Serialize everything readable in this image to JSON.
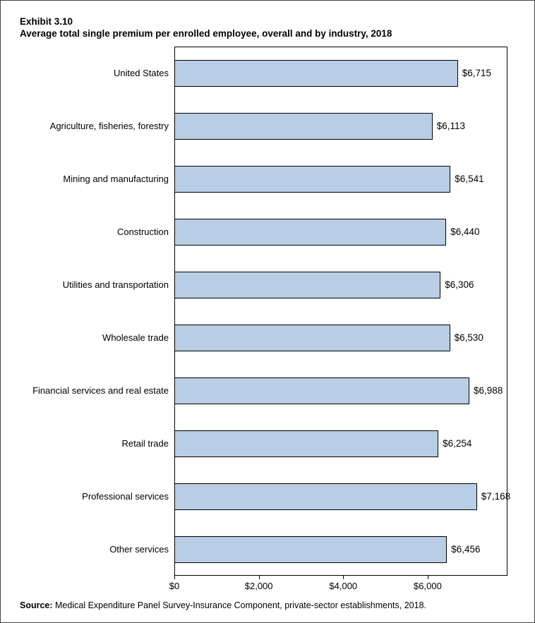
{
  "title": {
    "exhibit": "Exhibit 3.10",
    "text": "Average total single premium per enrolled employee, overall and by industry, 2018"
  },
  "chart_data": {
    "type": "bar",
    "orientation": "horizontal",
    "title": "Average total single premium per enrolled employee, overall and by industry, 2018",
    "categories": [
      "United States",
      "Agriculture, fisheries, forestry",
      "Mining and manufacturing",
      "Construction",
      "Utilities and transportation",
      "Wholesale trade",
      "Financial services and real estate",
      "Retail trade",
      "Professional services",
      "Other services"
    ],
    "values": [
      6715,
      6113,
      6541,
      6440,
      6306,
      6530,
      6988,
      6254,
      7168,
      6456
    ],
    "value_labels": [
      "$6,715",
      "$6,113",
      "$6,541",
      "$6,440",
      "$6,306",
      "$6,530",
      "$6,988",
      "$6,254",
      "$7,168",
      "$6,456"
    ],
    "xlabel": "",
    "ylabel": "",
    "xlim": [
      0,
      7890
    ],
    "xticks": [
      {
        "value": 0,
        "label": "$0"
      },
      {
        "value": 2000,
        "label": "$2,000"
      },
      {
        "value": 4000,
        "label": "$4,000"
      },
      {
        "value": 6000,
        "label": "$6,000"
      }
    ],
    "grid": false,
    "legend": "none",
    "bar_color": "#b9cde5",
    "bar_border_color": "#000000"
  },
  "source": {
    "prefix": "Source:",
    "text": " Medical Expenditure Panel Survey-Insurance Component, private-sector establishments, 2018."
  }
}
